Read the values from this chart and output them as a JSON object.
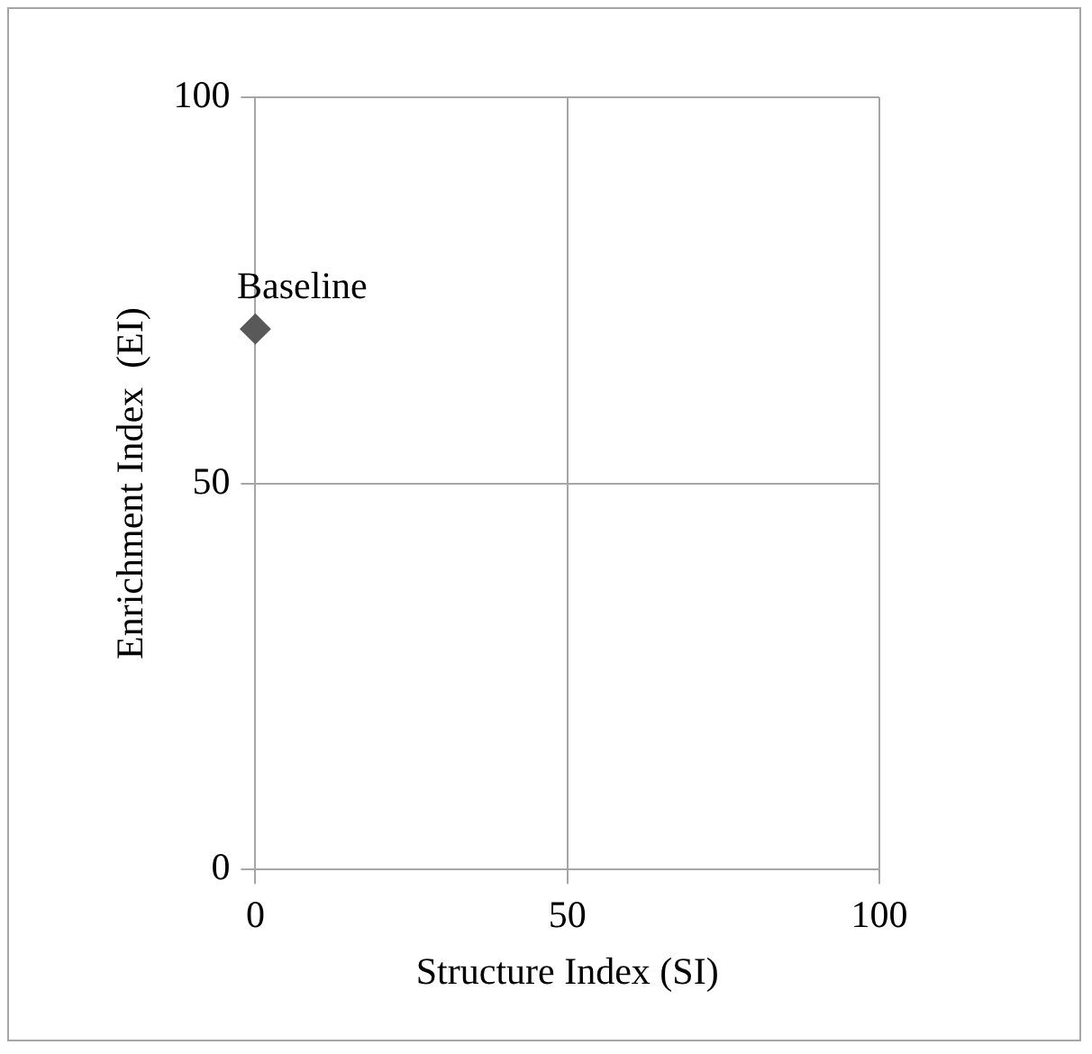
{
  "chart_data": {
    "type": "scatter",
    "xlabel": "Structure Index (SI)",
    "ylabel": "Enrichment Index  (EI)",
    "series": [
      {
        "name": "Baseline",
        "color": "#595959",
        "x": [
          0
        ],
        "values": [
          70
        ]
      }
    ],
    "xlim": [
      0,
      100
    ],
    "xticks": [
      0,
      50,
      100
    ],
    "ylim": [
      0,
      100
    ],
    "yticks": [
      0,
      50,
      100
    ],
    "grid": true,
    "legend": false,
    "marker": "diamond"
  }
}
